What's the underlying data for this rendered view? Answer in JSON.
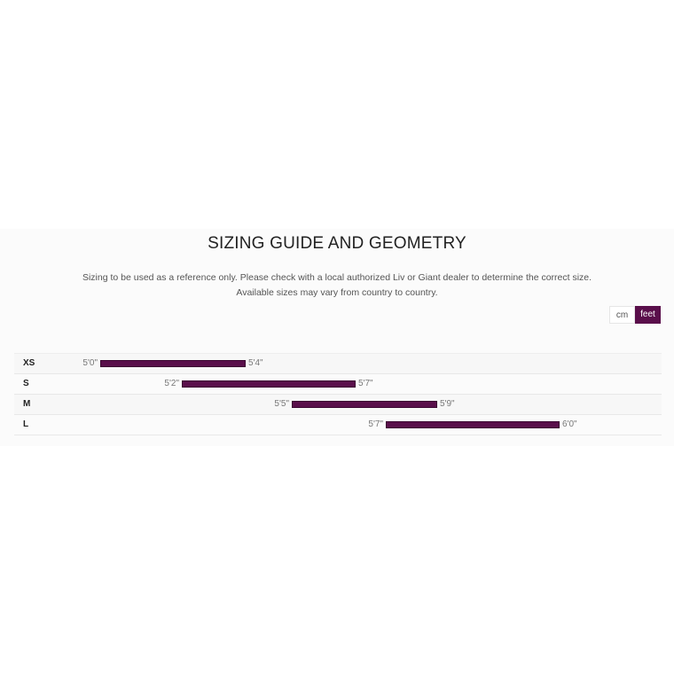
{
  "title": "SIZING GUIDE AND GEOMETRY",
  "description": [
    "Sizing to be used as a reference only. Please check with a local authorized Liv or Giant dealer to determine the correct size.",
    "Available sizes may vary from country to country."
  ],
  "unit_toggle": {
    "options": [
      "cm",
      "feet"
    ],
    "selected": "feet"
  },
  "accent_color": "#5a0f4b",
  "sizes": [
    {
      "size": "XS",
      "min": "5'0\"",
      "max": "5'4\""
    },
    {
      "size": "S",
      "min": "5'2\"",
      "max": "5'7\""
    },
    {
      "size": "M",
      "min": "5'5\"",
      "max": "5'9\""
    },
    {
      "size": "L",
      "min": "5'7\"",
      "max": "6'0\""
    }
  ]
}
